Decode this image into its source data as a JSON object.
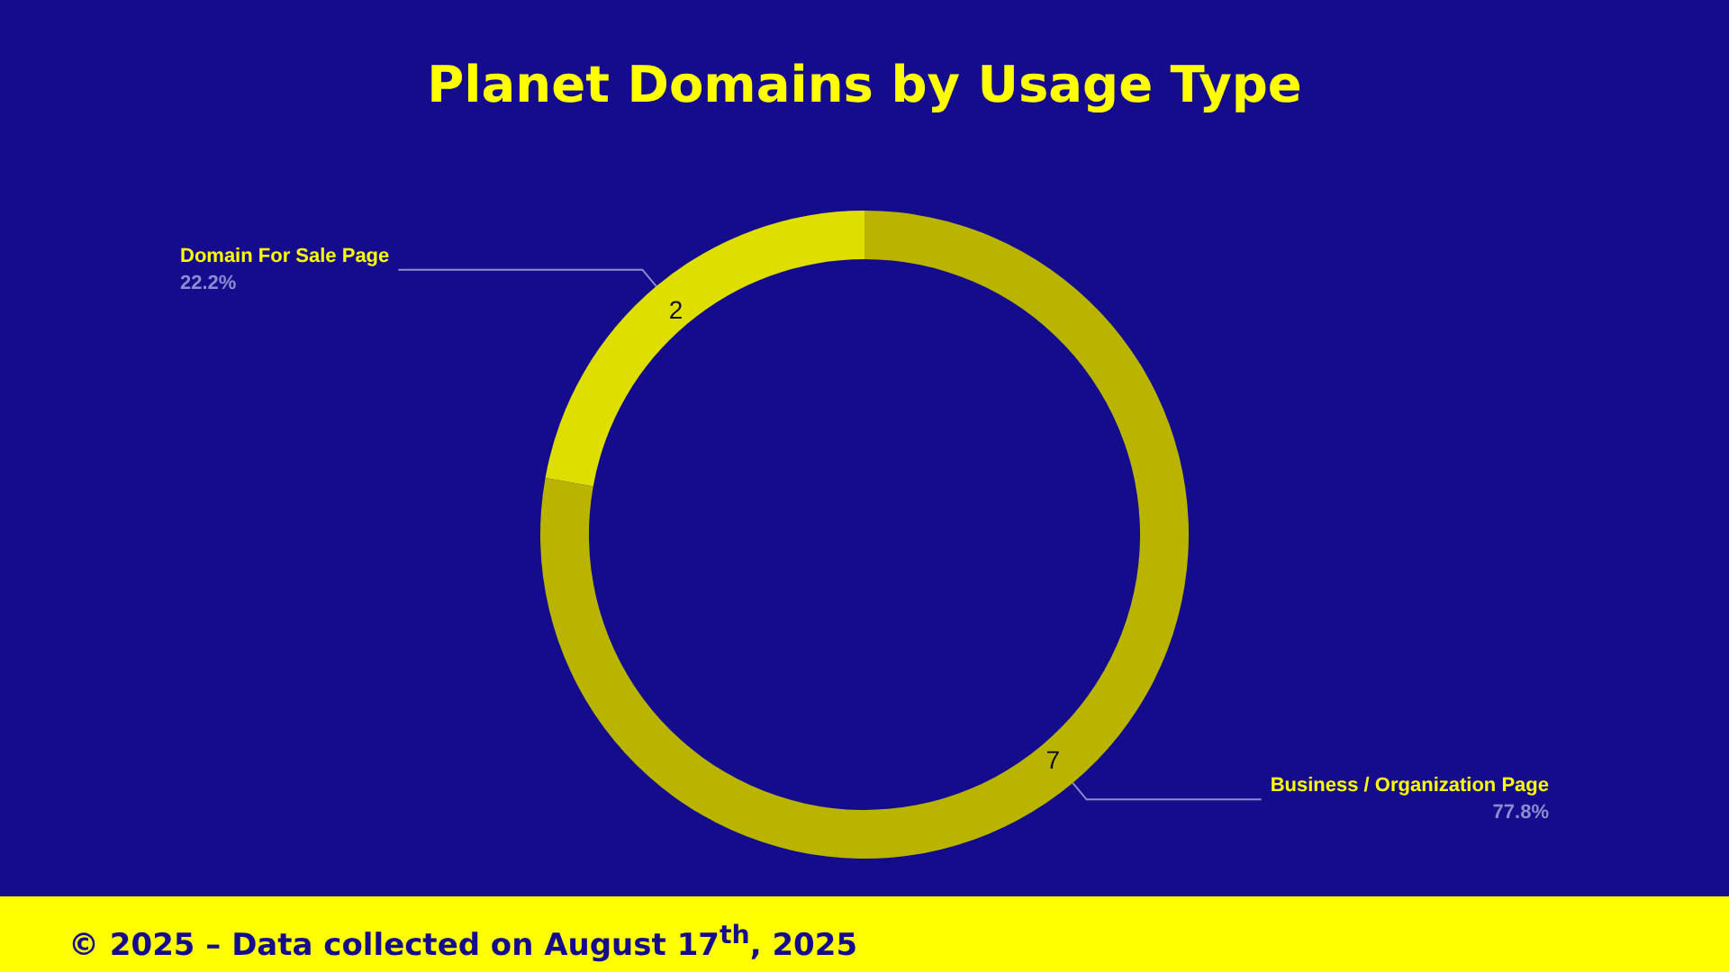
{
  "chart_data": {
    "type": "donut",
    "title": "Planet Domains by Usage Type",
    "categories": [
      "Business / Organization Page",
      "Domain For Sale Page"
    ],
    "values": [
      77.8,
      22.2
    ],
    "colors": [
      "#b8b400",
      "#dede00"
    ],
    "value_labels": [
      "77.8%",
      "22.2%"
    ],
    "legend": false,
    "annotations": [
      {
        "text": "7",
        "x": "Business / Organization Page"
      },
      {
        "text": "2",
        "x": "Domain For Sale Page"
      },
      "© 2025 – Data collected on August 17$^{th}$, 2025"
    ]
  }
}
